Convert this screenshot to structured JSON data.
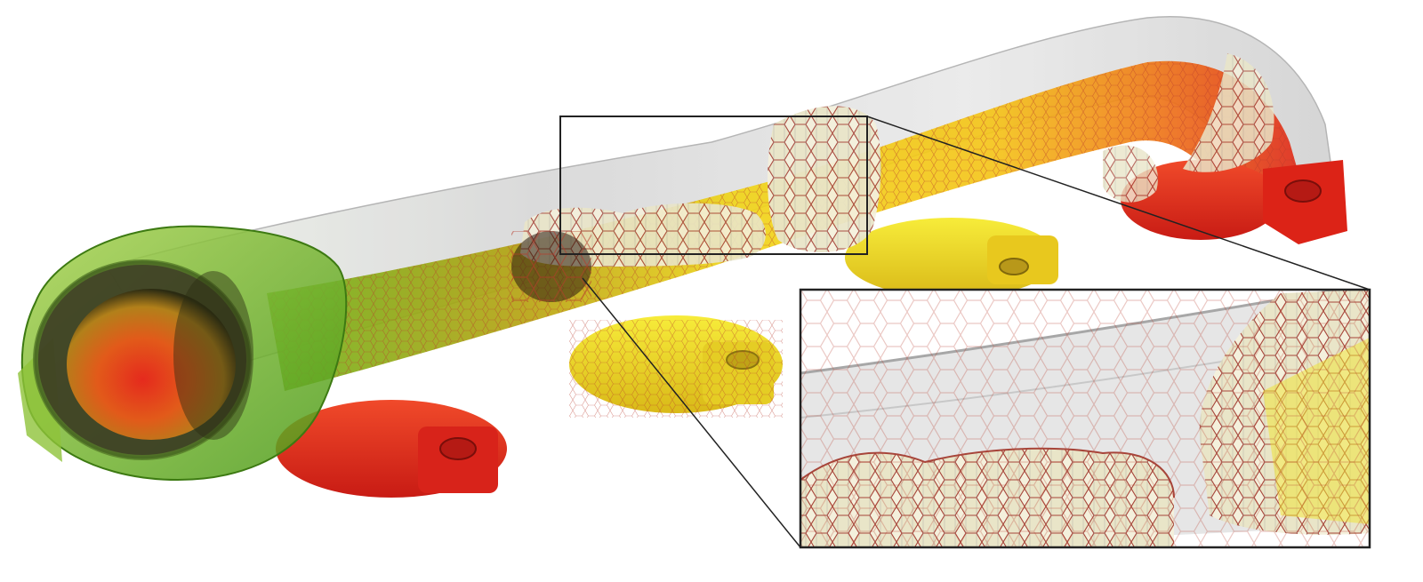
{
  "figure": {
    "kind": "3d-mesh-visualization",
    "subject": "exhaust-manifold",
    "mesh_cells": "polyhedral",
    "has_zoom_inset": true
  },
  "colors": {
    "background": "#ffffff",
    "shell": "#d9d9d9",
    "field_low": "#5cbf1a",
    "field_mid": "#f2e21a",
    "field_high": "#e8291c",
    "cell_edge": "#b8392a",
    "frame": "#222222"
  }
}
